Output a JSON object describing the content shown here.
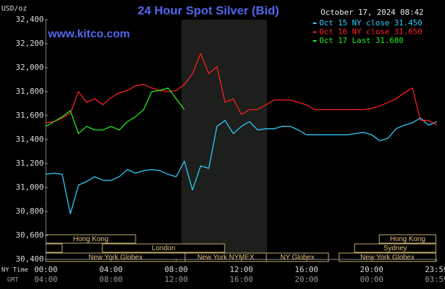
{
  "chart_data": {
    "type": "line",
    "title": "24 Hour Spot Silver (Bid)",
    "timestamp": "October 17, 2024 08:42",
    "unit_label": "USD/oz",
    "watermark": "www.kitco.com",
    "x_row_labels": [
      "NY Time",
      "GMT"
    ],
    "x": [
      0,
      0.5,
      1,
      1.5,
      2,
      2.5,
      3,
      3.5,
      4,
      4.5,
      5,
      5.5,
      6,
      6.5,
      7,
      7.5,
      8,
      8.5,
      9,
      9.5,
      10,
      10.5,
      11,
      11.5,
      12,
      12.5,
      13,
      13.5,
      14,
      14.5,
      15,
      15.5,
      16,
      16.5,
      17,
      17.5,
      18,
      18.5,
      19,
      19.5,
      20,
      20.5,
      21,
      21.5,
      22,
      22.5,
      23,
      23.5,
      24
    ],
    "series": [
      {
        "name": "Oct 15 NY close 31.450",
        "color": "#33ccff",
        "values": [
          31.11,
          31.12,
          31.11,
          30.78,
          31.02,
          31.05,
          31.09,
          31.06,
          31.06,
          31.09,
          31.15,
          31.12,
          31.14,
          31.15,
          31.14,
          31.11,
          31.09,
          31.22,
          30.98,
          31.18,
          31.16,
          31.51,
          31.56,
          31.45,
          31.51,
          31.55,
          31.48,
          31.49,
          31.49,
          31.51,
          31.51,
          31.48,
          31.44,
          31.44,
          31.44,
          31.44,
          31.44,
          31.44,
          31.45,
          31.46,
          31.44,
          31.39,
          31.41,
          31.49,
          31.52,
          31.54,
          31.58,
          31.52,
          31.55
        ]
      },
      {
        "name": "Oct 16 NY close 31.650",
        "color": "#ff2020",
        "values": [
          31.54,
          31.55,
          31.58,
          31.62,
          31.8,
          31.71,
          31.74,
          31.69,
          31.75,
          31.79,
          31.81,
          31.85,
          31.86,
          31.83,
          31.81,
          31.8,
          31.81,
          31.86,
          31.95,
          32.12,
          31.95,
          32.01,
          31.71,
          31.74,
          31.61,
          31.65,
          31.65,
          31.69,
          31.73,
          31.73,
          31.73,
          31.71,
          31.69,
          31.65,
          31.65,
          31.65,
          31.65,
          31.65,
          31.65,
          31.65,
          31.66,
          31.68,
          31.71,
          31.74,
          31.79,
          31.83,
          31.56,
          31.56,
          31.52
        ]
      },
      {
        "name": "Oct 17 Last 31.680",
        "color": "#22ee22",
        "values": [
          31.51,
          31.55,
          31.59,
          31.64,
          31.45,
          31.51,
          31.48,
          31.48,
          31.51,
          31.48,
          31.55,
          31.59,
          31.65,
          31.8,
          31.81,
          31.83,
          31.74,
          31.65,
          null,
          null,
          null,
          null,
          null,
          null,
          null,
          null,
          null,
          null,
          null,
          null,
          null,
          null,
          null,
          null,
          null,
          null,
          null,
          null,
          null,
          null,
          null,
          null,
          null,
          null,
          null,
          null,
          null,
          null,
          null
        ]
      }
    ],
    "xlim": [
      0,
      23.983
    ],
    "xticks": [
      {
        "value": 0,
        "label": "00:00"
      },
      {
        "value": 4,
        "label": "04:00"
      },
      {
        "value": 8,
        "label": "08:00"
      },
      {
        "value": 12,
        "label": "12:00"
      },
      {
        "value": 16,
        "label": "16:00"
      },
      {
        "value": 20,
        "label": "20:00"
      },
      {
        "value": 23.983,
        "label": "23:59"
      }
    ],
    "xticks_gmt": [
      {
        "value": 0,
        "label": "04:00"
      },
      {
        "value": 4,
        "label": "08:00"
      },
      {
        "value": 8,
        "label": "12:00"
      },
      {
        "value": 12,
        "label": "16:00"
      },
      {
        "value": 16,
        "label": "20:00"
      },
      {
        "value": 20,
        "label": "00:00"
      },
      {
        "value": 23.983,
        "label": "03:59"
      }
    ],
    "ylim": [
      30.4,
      32.4
    ],
    "yticks": [
      {
        "value": 30.4,
        "label": "30,400"
      },
      {
        "value": 30.6,
        "label": "30,600"
      },
      {
        "value": 30.8,
        "label": "30,800"
      },
      {
        "value": 31.0,
        "label": "31,000"
      },
      {
        "value": 31.2,
        "label": "31,200"
      },
      {
        "value": 31.4,
        "label": "31,400"
      },
      {
        "value": 31.6,
        "label": "31,600"
      },
      {
        "value": 31.8,
        "label": "31,800"
      },
      {
        "value": 32.0,
        "label": "32,000"
      },
      {
        "value": 32.2,
        "label": "32,200"
      },
      {
        "value": 32.4,
        "label": "32,400"
      }
    ],
    "grid": false,
    "sessions": [
      "Hong Kong",
      "London",
      "New York Globex",
      "New York NYMEX",
      "NY Globex",
      "Hong Kong",
      "Sydney",
      "New York Globex"
    ]
  }
}
